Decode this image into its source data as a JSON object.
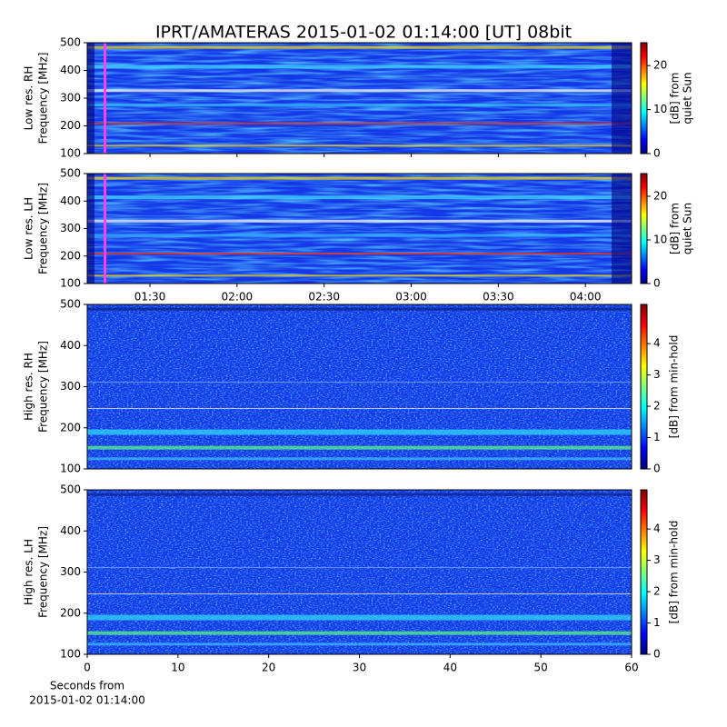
{
  "chart_data": [
    {
      "type": "heatmap",
      "title": "IPRT/AMATERAS 2015-01-02 01:14:00 [UT]   08bit",
      "ylabel": [
        "Low res. RH",
        "Frequency [MHz]"
      ],
      "ylim": [
        100,
        500
      ],
      "yticks": [
        100,
        200,
        300,
        400,
        500
      ],
      "colorbar": {
        "label": [
          "[dB] from",
          "quiet Sun"
        ],
        "lim": [
          0,
          25.2
        ],
        "ticks": [
          0,
          10,
          20
        ]
      }
    },
    {
      "type": "heatmap",
      "ylabel": [
        "Low res. LH",
        "Frequency [MHz]"
      ],
      "ylim": [
        100,
        500
      ],
      "yticks": [
        100,
        200,
        300,
        400,
        500
      ],
      "xlim": [
        68.4,
        255.9
      ],
      "xticks": [
        {
          "value": 90,
          "label": "01:30"
        },
        {
          "value": 120,
          "label": "02:00"
        },
        {
          "value": 150,
          "label": "02:30"
        },
        {
          "value": 180,
          "label": "03:00"
        },
        {
          "value": 210,
          "label": "03:30"
        },
        {
          "value": 240,
          "label": "04:00"
        }
      ],
      "colorbar": {
        "label": [
          "[dB] from",
          "quiet Sun"
        ],
        "lim": [
          0,
          25.2
        ],
        "ticks": [
          0,
          10,
          20
        ]
      }
    },
    {
      "type": "heatmap",
      "ylabel": [
        "High res. RH",
        "Frequency [MHz]"
      ],
      "ylim": [
        100,
        500
      ],
      "yticks": [
        100,
        200,
        300,
        400,
        500
      ],
      "colorbar": {
        "label": [
          "[dB] from min-hold"
        ],
        "lim": [
          0,
          5.25
        ],
        "ticks": [
          0,
          1,
          2,
          3,
          4
        ]
      }
    },
    {
      "type": "heatmap",
      "ylabel": [
        "High res. LH",
        "Frequency [MHz]"
      ],
      "ylim": [
        100,
        500
      ],
      "yticks": [
        100,
        200,
        300,
        400,
        500
      ],
      "xlim": [
        0,
        60
      ],
      "xticks": [
        0,
        10,
        20,
        30,
        40,
        50,
        60
      ],
      "xlabel": [
        "Seconds from",
        "2015-01-02 01:14:00"
      ],
      "colorbar": {
        "label": [
          "[dB] from min-hold"
        ],
        "lim": [
          0,
          5.25
        ],
        "ticks": [
          0,
          1,
          2,
          3,
          4
        ]
      }
    }
  ]
}
